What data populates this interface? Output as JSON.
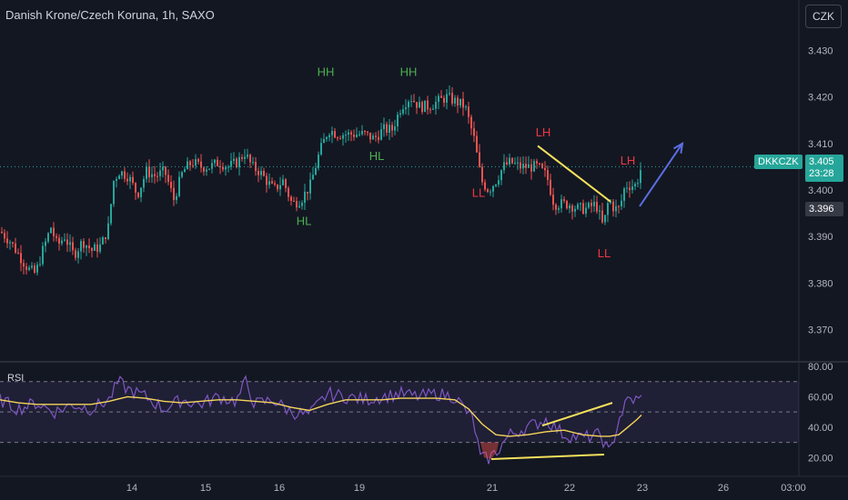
{
  "header": {
    "title": "Danish Krone/Czech Koruna, 1h, SAXO",
    "currency_button": "CZK"
  },
  "price_panel": {
    "symbol": "DKKCZK",
    "last_price": "3.405",
    "countdown": "23:28",
    "secondary_price": "3.396"
  },
  "rsi_panel": {
    "label": "RSI"
  },
  "colors": {
    "background": "#131722",
    "up": "#26a69a",
    "down": "#ef5350",
    "rsi_line": "#7e57c2",
    "rsi_ma": "#f5d45c",
    "annotation_up": "#4caf50",
    "annotation_down": "#f23645",
    "trendline": "#f5e15c",
    "arrow": "#5b6ee1"
  },
  "chart_data": [
    {
      "type": "candlestick",
      "title": "Danish Krone/Czech Koruna, 1h, SAXO",
      "ylim": [
        3.365,
        3.435
      ],
      "y_ticks": [
        "3.430",
        "3.420",
        "3.410",
        "3.400",
        "3.390",
        "3.380",
        "3.370"
      ],
      "x_ticks": [
        "14",
        "15",
        "16",
        "19",
        "21",
        "22",
        "23",
        "26",
        "03:00"
      ],
      "trace_x": [
        0,
        10,
        20,
        30,
        38,
        46,
        55,
        62,
        70,
        80,
        90,
        100,
        110,
        118,
        124,
        130,
        140,
        150,
        160,
        170,
        180,
        190,
        200,
        210,
        220,
        230,
        240,
        250,
        260,
        268,
        276,
        284,
        292,
        300,
        310,
        320,
        330,
        340,
        350,
        360,
        370,
        380,
        390,
        400,
        410,
        420,
        430,
        440,
        450,
        460,
        470,
        480,
        490,
        500,
        510,
        520,
        528,
        536,
        544,
        552,
        560,
        570,
        580,
        590,
        600,
        608,
        616,
        624,
        634,
        644,
        654,
        662,
        668,
        674,
        680,
        686,
        692,
        698,
        704
      ],
      "trace_price": [
        3.391,
        3.389,
        3.386,
        3.383,
        3.382,
        3.387,
        3.392,
        3.388,
        3.39,
        3.386,
        3.389,
        3.387,
        3.388,
        3.392,
        3.402,
        3.404,
        3.403,
        3.399,
        3.404,
        3.403,
        3.404,
        3.398,
        3.404,
        3.406,
        3.405,
        3.405,
        3.406,
        3.405,
        3.406,
        3.408,
        3.405,
        3.404,
        3.402,
        3.4,
        3.402,
        3.397,
        3.398,
        3.401,
        3.408,
        3.413,
        3.412,
        3.412,
        3.412,
        3.412,
        3.411,
        3.413,
        3.413,
        3.418,
        3.42,
        3.418,
        3.418,
        3.419,
        3.42,
        3.419,
        3.418,
        3.411,
        3.402,
        3.4,
        3.402,
        3.405,
        3.406,
        3.405,
        3.405,
        3.405,
        3.403,
        3.397,
        3.397,
        3.397,
        3.396,
        3.396,
        3.397,
        3.392,
        3.398,
        3.396,
        3.396,
        3.401,
        3.401,
        3.401,
        3.405
      ],
      "annotations": [
        {
          "text": "HH",
          "x": 358,
          "price": 3.4245,
          "color": "up"
        },
        {
          "text": "HH",
          "x": 449,
          "price": 3.4245,
          "color": "up"
        },
        {
          "text": "HL",
          "x": 414,
          "price": 3.4065,
          "color": "up"
        },
        {
          "text": "HL",
          "x": 334,
          "price": 3.3925,
          "color": "up"
        },
        {
          "text": "LL",
          "x": 526,
          "price": 3.3985,
          "color": "down"
        },
        {
          "text": "LH",
          "x": 597,
          "price": 3.4115,
          "color": "down"
        },
        {
          "text": "LH",
          "x": 690,
          "price": 3.4055,
          "color": "down"
        },
        {
          "text": "LL",
          "x": 664,
          "price": 3.3855,
          "color": "down"
        }
      ],
      "trendline": {
        "from": [
          591,
          3.4095
        ],
        "to": [
          671,
          3.3975
        ]
      },
      "projection_arrow": {
        "from": [
          703,
          3.3965
        ],
        "to": [
          750,
          3.41
        ]
      }
    },
    {
      "type": "line",
      "title": "RSI",
      "ylim": [
        10,
        80
      ],
      "y_ticks": [
        "80.00",
        "60.00",
        "40.00",
        "20.00"
      ],
      "levels": [
        70,
        50,
        30
      ],
      "series": [
        {
          "name": "RSI",
          "x": [
            0,
            20,
            40,
            60,
            80,
            100,
            120,
            130,
            140,
            160,
            180,
            200,
            220,
            240,
            260,
            270,
            280,
            300,
            320,
            340,
            360,
            380,
            400,
            420,
            440,
            460,
            480,
            500,
            520,
            528,
            536,
            546,
            560,
            580,
            600,
            620,
            640,
            660,
            670,
            680,
            690,
            700,
            705
          ],
          "y": [
            58,
            52,
            56,
            50,
            55,
            52,
            58,
            70,
            65,
            60,
            52,
            58,
            55,
            60,
            57,
            70,
            55,
            58,
            50,
            48,
            62,
            60,
            58,
            60,
            62,
            60,
            62,
            60,
            45,
            20,
            19,
            24,
            35,
            40,
            45,
            35,
            33,
            35,
            22,
            45,
            58,
            58,
            61
          ]
        },
        {
          "name": "RSI-based MA",
          "x": [
            0,
            20,
            40,
            60,
            80,
            100,
            120,
            140,
            160,
            180,
            200,
            220,
            240,
            260,
            280,
            300,
            320,
            340,
            360,
            380,
            400,
            420,
            440,
            460,
            480,
            500,
            515,
            530,
            545,
            560,
            580,
            600,
            620,
            640,
            660,
            670,
            680,
            690,
            700,
            705
          ],
          "y": [
            58,
            56,
            55,
            55,
            55,
            55,
            57,
            60,
            59,
            57,
            56,
            57,
            58,
            58,
            57,
            56,
            53,
            51,
            55,
            58,
            58,
            58,
            59,
            59,
            59,
            58,
            52,
            42,
            35,
            34,
            35,
            37,
            38,
            35,
            34,
            34,
            35,
            40,
            45,
            48
          ]
        }
      ],
      "divergence_lines": [
        {
          "from": [
            596,
            41
          ],
          "to": [
            673,
            56
          ]
        },
        {
          "from": [
            540,
            19
          ],
          "to": [
            664,
            22
          ]
        }
      ]
    }
  ]
}
